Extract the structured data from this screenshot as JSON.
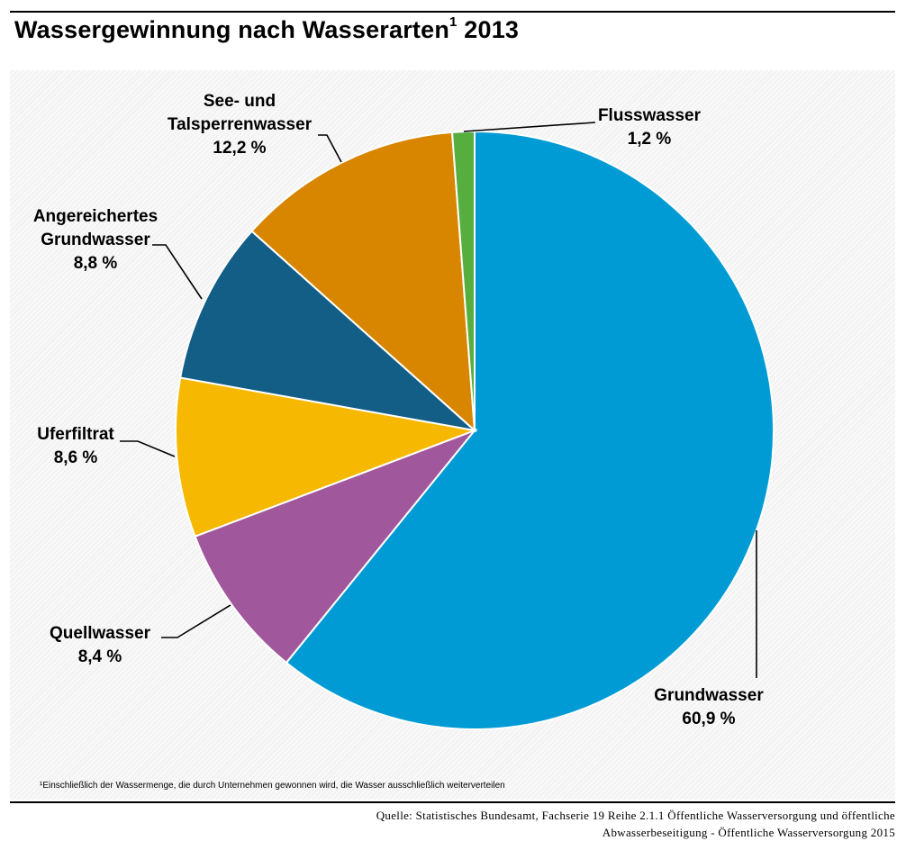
{
  "title": {
    "text": "Wassergewinnung nach Wasserarten",
    "footnote_mark": "1",
    "year": "2013"
  },
  "footnote": "¹Einschließlich der Wassermenge, die durch Unternehmen gewonnen wird, die Wasser ausschließlich weiterverteilen",
  "source": {
    "line1": "Quelle: Statistisches Bundesamt, Fachserie 19  Reihe 2.1.1 Öffentliche Wasserversorgung und öffentliche",
    "line2": "Abwasserbeseitigung - Öffentliche Wasserversorgung 2015"
  },
  "chart_data": {
    "type": "pie",
    "title": "Wassergewinnung nach Wasserarten 2013",
    "unit": "%",
    "start": "12 o'clock, clockwise",
    "slices": [
      {
        "id": "grundwasser",
        "name": "Grundwasser",
        "label_lines": [
          "Grundwasser"
        ],
        "value": 60.9,
        "value_label": "60,9 %",
        "color": "#009bd4"
      },
      {
        "id": "quellwasser",
        "name": "Quellwasser",
        "label_lines": [
          "Quellwasser"
        ],
        "value": 8.4,
        "value_label": "8,4 %",
        "color": "#a0579b"
      },
      {
        "id": "uferfiltrat",
        "name": "Uferfiltrat",
        "label_lines": [
          "Uferfiltrat"
        ],
        "value": 8.6,
        "value_label": "8,6 %",
        "color": "#f6b800"
      },
      {
        "id": "angereichertes-grundwasser",
        "name": "Angereichertes Grundwasser",
        "label_lines": [
          "Angereichertes",
          "Grundwasser"
        ],
        "value": 8.8,
        "value_label": "8,8 %",
        "color": "#135e86"
      },
      {
        "id": "see-und-talsperrenwasser",
        "name": "See- und Talsperrenwasser",
        "label_lines": [
          "See- und",
          "Talsperrenwasser"
        ],
        "value": 12.2,
        "value_label": "12,2 %",
        "color": "#d88600"
      },
      {
        "id": "flusswasser",
        "name": "Flusswasser",
        "label_lines": [
          "Flusswasser"
        ],
        "value": 1.2,
        "value_label": "1,2 %",
        "color": "#56ae3e"
      }
    ]
  }
}
